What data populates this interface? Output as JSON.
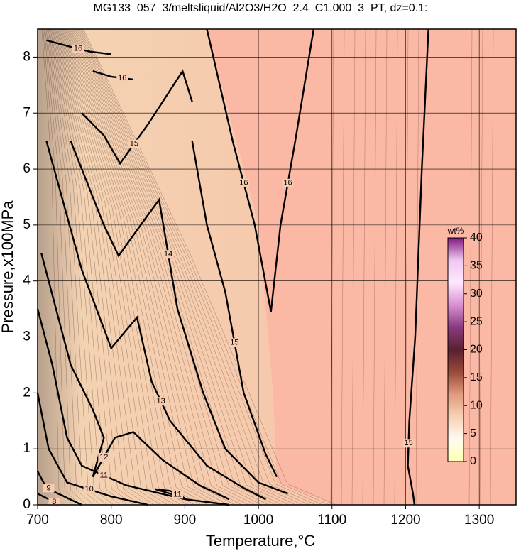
{
  "chart_data": {
    "type": "contour",
    "title": "MG133_057_3/meltsliquid/Al2O3/H2O_2.4_C1.000_3_PT, dz=0.1:",
    "x_label": "Temperature,°C",
    "y_label": "Pressure,x100MPa",
    "xlim": [
      700,
      1350
    ],
    "ylim": [
      0,
      8.5
    ],
    "xticks": [
      700,
      800,
      900,
      1000,
      1100,
      1200,
      1300
    ],
    "yticks": [
      0,
      1,
      2,
      3,
      4,
      5,
      6,
      7,
      8
    ],
    "grid": true,
    "fill_color": "#fbb8a4",
    "line_color": "#000000",
    "contours": [
      {
        "level": 16,
        "x": [
          712,
          740,
          770,
          800
        ],
        "y": [
          8.3,
          8.2,
          8.1,
          8.05
        ]
      },
      {
        "level": 16,
        "x": [
          775,
          800,
          830
        ],
        "y": [
          7.75,
          7.65,
          7.6
        ]
      },
      {
        "level": 15,
        "x": [
          760,
          790,
          812,
          850,
          897,
          910
        ],
        "y": [
          7.0,
          6.6,
          6.1,
          6.8,
          7.75,
          7.2
        ]
      },
      {
        "level": 15,
        "x": [
          910,
          930,
          955,
          980,
          1010,
          1025
        ],
        "y": [
          6.5,
          5.0,
          3.8,
          2.0,
          0.9,
          0.5
        ]
      },
      {
        "level": 16,
        "x": [
          930,
          965,
          995,
          1017
        ],
        "y": [
          8.5,
          6.5,
          5.0,
          3.45
        ]
      },
      {
        "level": 16,
        "x": [
          1017,
          1030,
          1050,
          1075
        ],
        "y": [
          3.45,
          5.0,
          6.5,
          8.5
        ]
      },
      {
        "level": 15,
        "x": [
          1231,
          1222,
          1213,
          1205,
          1203,
          1210,
          1212
        ],
        "y": [
          8.5,
          6.0,
          3.0,
          1.5,
          0.7,
          0.2,
          0.0
        ]
      },
      {
        "level": 14,
        "x": [
          745,
          790,
          810,
          840,
          865,
          890,
          925,
          955,
          1000,
          1040
        ],
        "y": [
          6.5,
          5.0,
          4.45,
          5.0,
          5.45,
          3.5,
          2.0,
          1.0,
          0.4,
          0.2
        ]
      },
      {
        "level": 13,
        "x": [
          712,
          760,
          800,
          835,
          855,
          880,
          930,
          980,
          1010
        ],
        "y": [
          6.5,
          4.2,
          2.8,
          3.35,
          2.2,
          1.5,
          0.7,
          0.3,
          0.1
        ]
      },
      {
        "level": 12,
        "x": [
          705,
          745,
          775,
          790,
          775,
          805,
          830,
          870,
          920,
          960
        ],
        "y": [
          4.5,
          2.5,
          1.7,
          1.2,
          0.5,
          1.2,
          1.3,
          0.8,
          0.35,
          0.1
        ]
      },
      {
        "level": 11,
        "x": [
          700,
          720,
          740,
          760,
          820,
          900,
          960
        ],
        "y": [
          3.5,
          2.5,
          1.2,
          0.7,
          0.35,
          0.1,
          0.0
        ]
      },
      {
        "level": 11,
        "x": [
          860,
          880,
          900,
          880,
          860
        ],
        "y": [
          0.28,
          0.2,
          0.12,
          0.25,
          0.28
        ]
      },
      {
        "level": 10,
        "x": [
          700,
          715,
          740,
          800,
          850
        ],
        "y": [
          2.0,
          1.0,
          0.4,
          0.15,
          0.0
        ]
      },
      {
        "level": 9,
        "x": [
          700,
          710,
          720,
          760
        ],
        "y": [
          0.6,
          0.35,
          0.25,
          0.0
        ]
      },
      {
        "level": 8,
        "x": [
          700,
          715,
          730
        ],
        "y": [
          0.2,
          0.1,
          0.0
        ]
      }
    ],
    "colorbar": {
      "label": "wt%",
      "lim": [
        0,
        40
      ],
      "ticks": [
        0,
        5,
        10,
        15,
        20,
        25,
        30,
        35,
        40
      ],
      "colors": [
        "#ffffb0",
        "#fffaf0",
        "#f6d2b4",
        "#e29a80",
        "#9a4a38",
        "#5a2030",
        "#8a3a80",
        "#d890d0",
        "#ffe8ff",
        "#f0c8f0",
        "#801880"
      ]
    }
  }
}
